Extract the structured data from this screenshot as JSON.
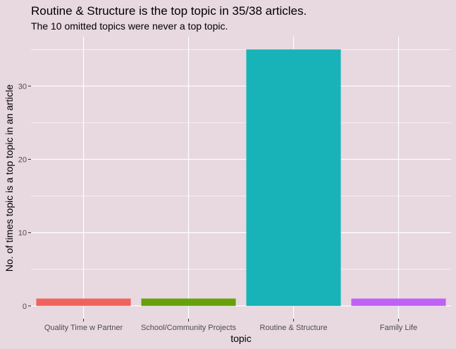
{
  "chart_data": {
    "type": "bar",
    "title": "Routine & Structure is the top topic in 35/38 articles.",
    "subtitle": "The 10 omitted topics were never a top topic.",
    "xlabel": "topic",
    "ylabel": "No. of times topic is a top topic in an article",
    "categories": [
      "Quality Time w Partner",
      "School/Community Projects",
      "Routine & Structure",
      "Family Life"
    ],
    "values": [
      1,
      1,
      35,
      1
    ],
    "colors": [
      "#f0635d",
      "#66a10a",
      "#17b3b8",
      "#bf61f6"
    ],
    "yticks": [
      0,
      10,
      20,
      30
    ],
    "ylim": [
      -1.75,
      36.75
    ],
    "grid": true,
    "legend": "none",
    "background": "#e8d8e0",
    "gridline_color": "#ffffff"
  }
}
